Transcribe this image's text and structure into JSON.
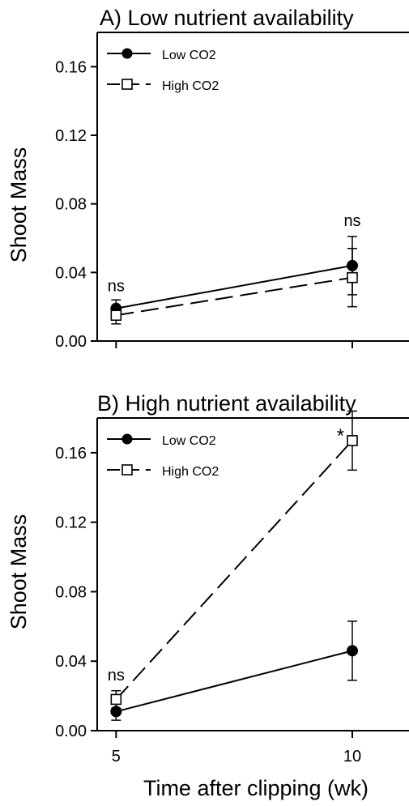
{
  "figure": {
    "xlabel": "Time after clipping (wk)",
    "x_ticks": [
      "5",
      "10"
    ]
  },
  "chart_data": [
    {
      "type": "line",
      "title": "A) Low nutrient availability",
      "ylabel": "Shoot Mass",
      "x": [
        5,
        10
      ],
      "xlim": [
        4.6,
        11.2
      ],
      "ylim": [
        0,
        0.18
      ],
      "y_ticks": [
        "0.00",
        "0.04",
        "0.08",
        "0.12",
        "0.16"
      ],
      "legend_position": "top-left",
      "series": [
        {
          "name": "Low CO2",
          "marker": "filled-circle",
          "line": "solid",
          "values": [
            0.019,
            0.044
          ],
          "error": [
            0.005,
            0.017
          ]
        },
        {
          "name": "High CO2",
          "marker": "open-square",
          "line": "dashed",
          "values": [
            0.015,
            0.037
          ],
          "error": [
            0.005,
            0.017
          ]
        }
      ],
      "annotations": [
        {
          "text": "ns",
          "x": 5,
          "y": 0.029
        },
        {
          "text": "ns",
          "x": 10,
          "y": 0.067
        }
      ]
    },
    {
      "type": "line",
      "title": "B) High nutrient availability",
      "ylabel": "Shoot Mass",
      "x": [
        5,
        10
      ],
      "xlim": [
        4.6,
        11.2
      ],
      "ylim": [
        0,
        0.18
      ],
      "y_ticks": [
        "0.00",
        "0.04",
        "0.08",
        "0.12",
        "0.16"
      ],
      "legend_position": "top-left",
      "series": [
        {
          "name": "Low CO2",
          "marker": "filled-circle",
          "line": "solid",
          "values": [
            0.011,
            0.046
          ],
          "error": [
            0.005,
            0.017
          ]
        },
        {
          "name": "High CO2",
          "marker": "open-square",
          "line": "dashed",
          "values": [
            0.018,
            0.167
          ],
          "error": [
            0.005,
            0.017
          ]
        }
      ],
      "annotations": [
        {
          "text": "ns",
          "x": 5,
          "y": 0.029
        },
        {
          "text": "*",
          "x": 9.75,
          "y": 0.166
        }
      ]
    }
  ]
}
